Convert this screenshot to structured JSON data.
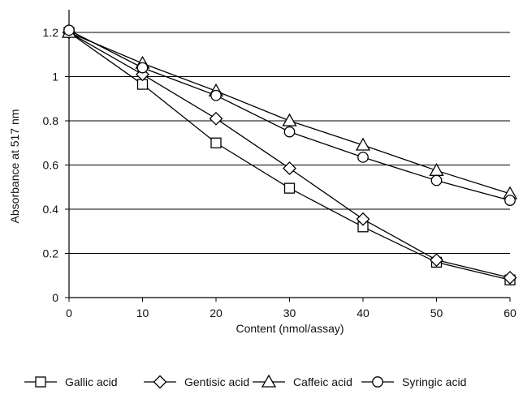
{
  "chart_data": {
    "type": "line",
    "xlabel": "Content (nmol/assay)",
    "ylabel": "Absorbance at 517 nm",
    "x": [
      0,
      10,
      20,
      30,
      40,
      50,
      60
    ],
    "xticks": [
      "0",
      "10",
      "20",
      "30",
      "40",
      "50",
      "60"
    ],
    "yticks": [
      "0",
      "0.2",
      "0.4",
      "0.6",
      "0.8",
      "1",
      "1.2"
    ],
    "xlim": [
      0,
      60
    ],
    "ylim": [
      0,
      1.2
    ],
    "grid": "horizontal",
    "legend": "bottom",
    "series": [
      {
        "name": "Gallic acid",
        "marker": "square",
        "values": [
          1.2,
          0.965,
          0.7,
          0.495,
          0.32,
          0.16,
          0.08
        ]
      },
      {
        "name": "Gentisic acid",
        "marker": "diamond",
        "values": [
          1.2,
          1.01,
          0.81,
          0.585,
          0.355,
          0.17,
          0.09
        ]
      },
      {
        "name": "Caffeic acid",
        "marker": "triangle",
        "values": [
          1.2,
          1.06,
          0.935,
          0.8,
          0.69,
          0.575,
          0.47
        ]
      },
      {
        "name": "Syringic acid",
        "marker": "circle",
        "values": [
          1.21,
          1.04,
          0.915,
          0.75,
          0.635,
          0.53,
          0.44
        ]
      }
    ]
  }
}
